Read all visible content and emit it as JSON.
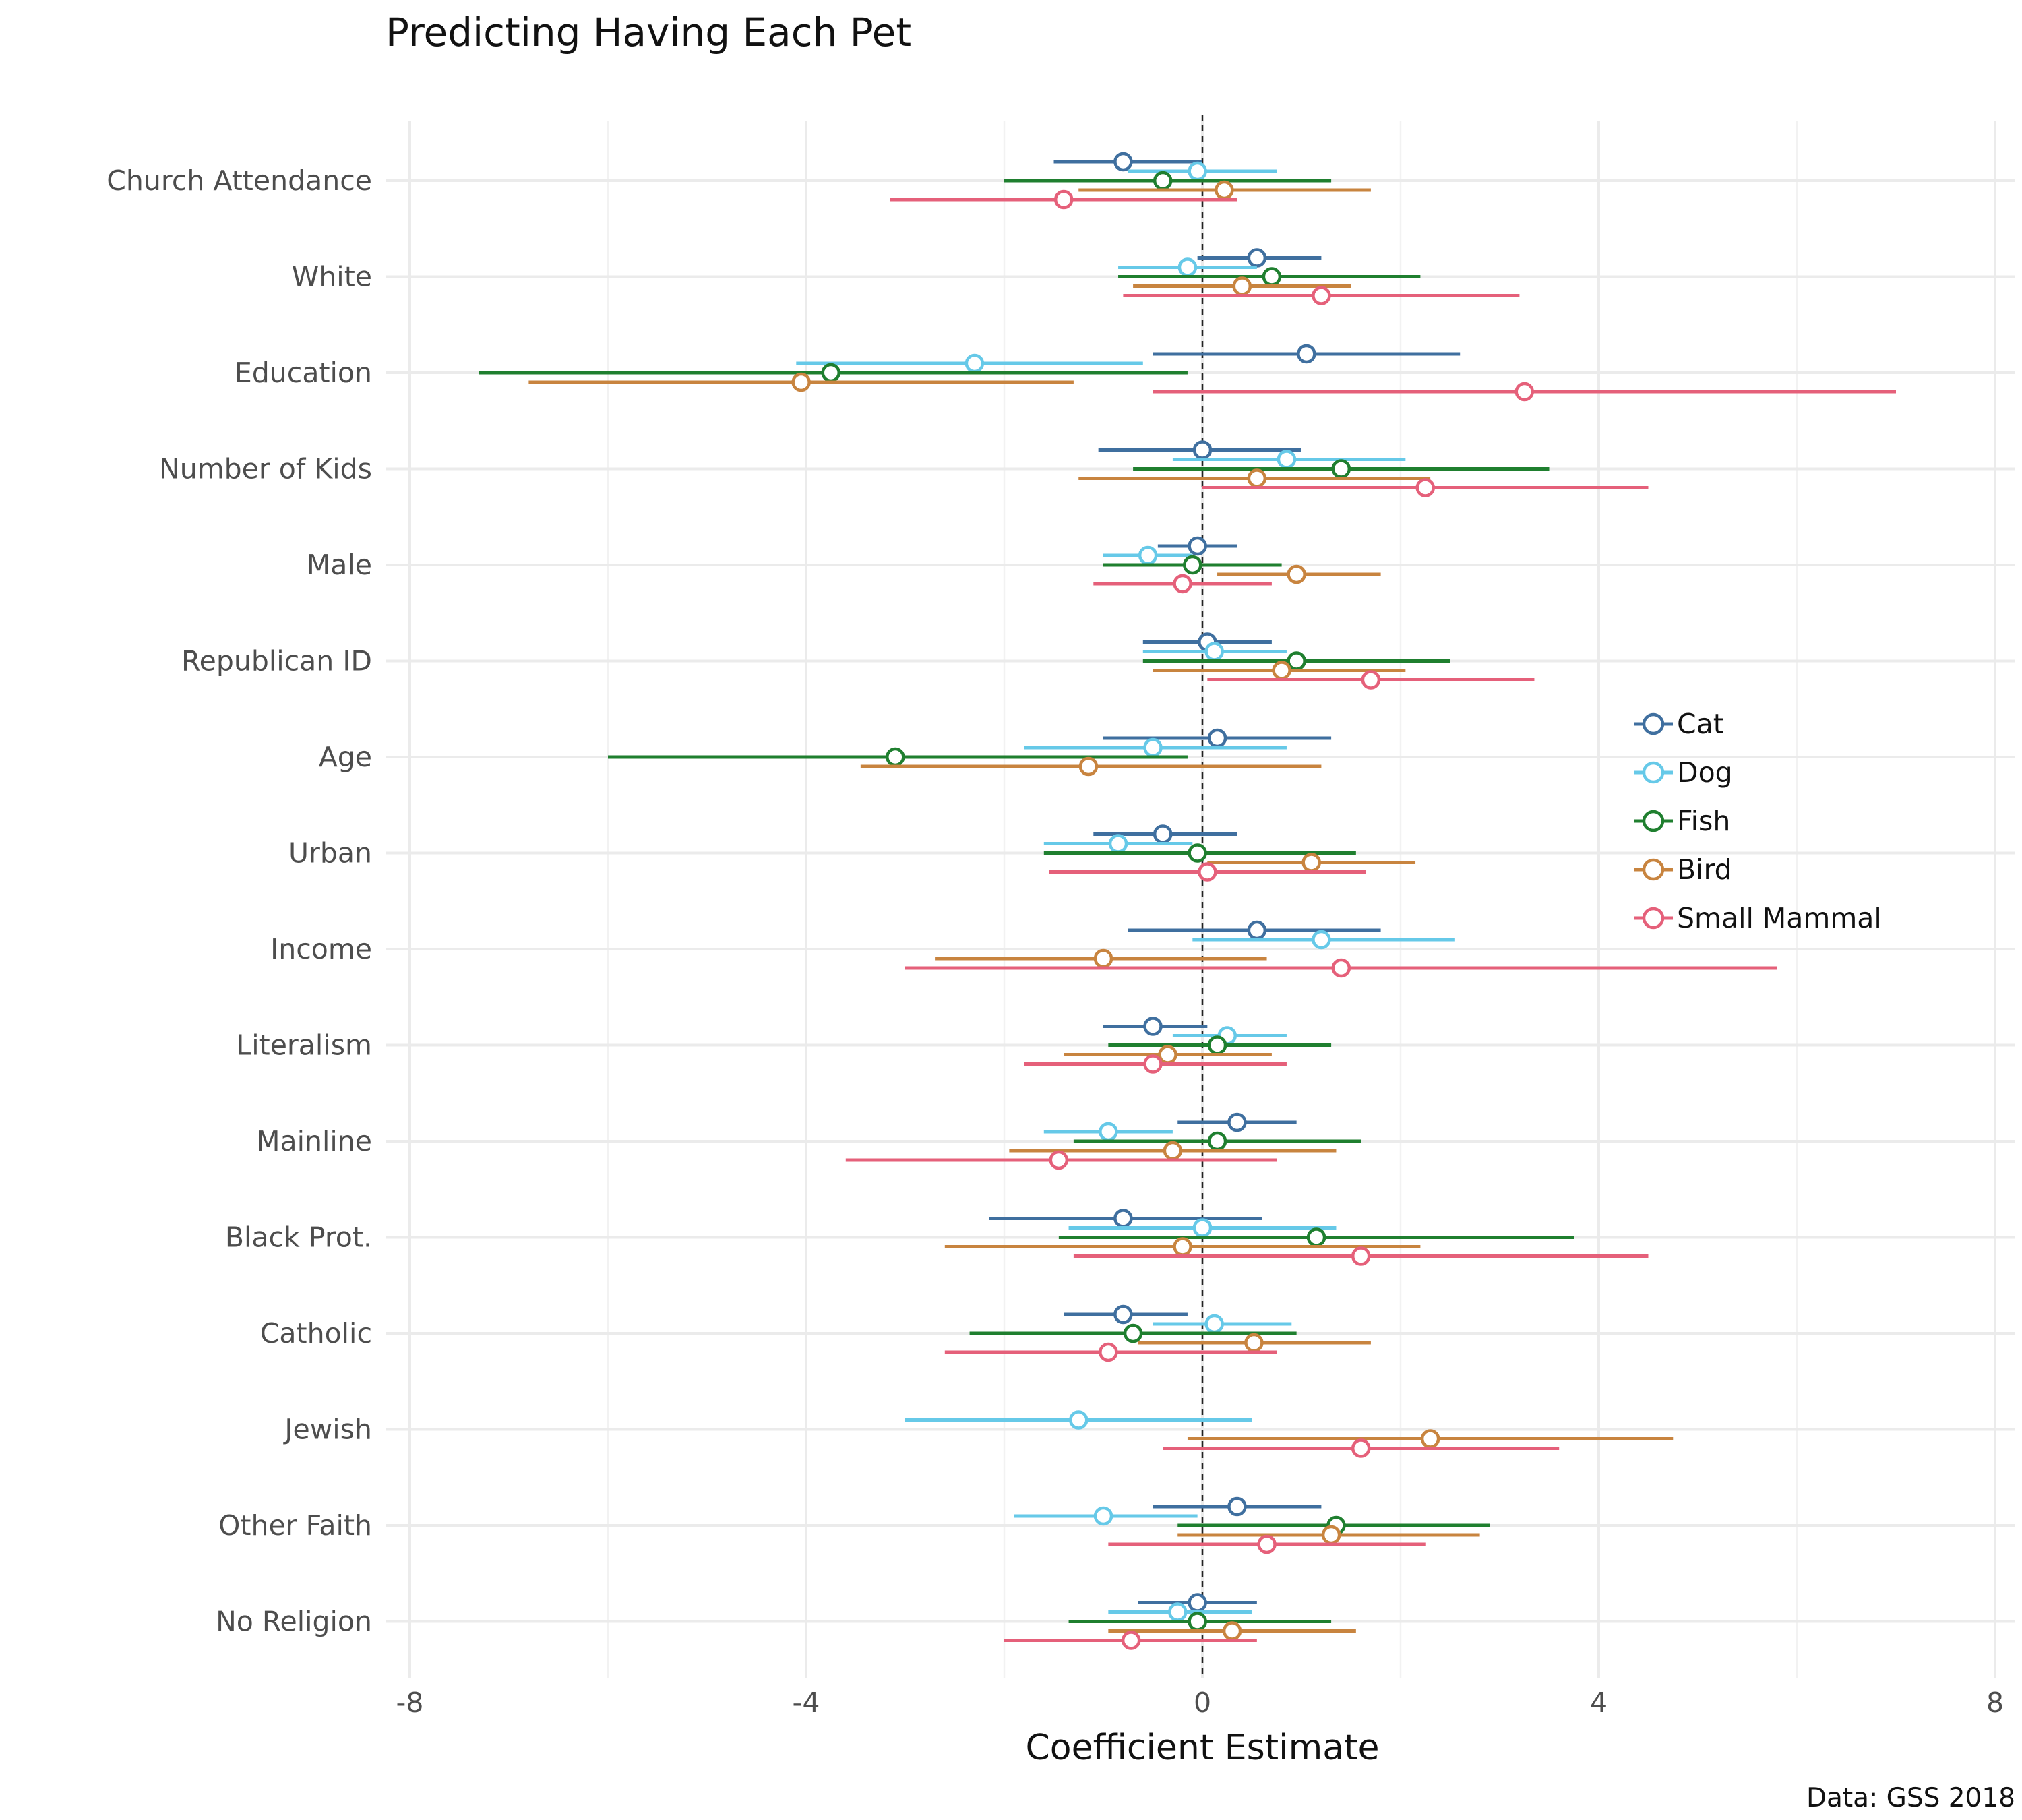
{
  "chart_data": {
    "type": "dot-and-whisker",
    "title": "Predicting Having Each Pet",
    "xlabel": "Coefficient Estimate",
    "caption": "Data: GSS 2018",
    "xlim": [
      -8.2,
      8.2
    ],
    "xticks": [
      -8,
      -4,
      0,
      4,
      8
    ],
    "xtick_labels": [
      "-8",
      "-4",
      "0",
      "4",
      "8"
    ],
    "reference_line": 0,
    "grid": true,
    "legend_position": "right",
    "colors": {
      "Cat": "#3f6f9f",
      "Dog": "#66c9e8",
      "Fish": "#1f7f2f",
      "Bird": "#c8843f",
      "Small Mammal": "#e5607a"
    },
    "categories": [
      "Church Attendance",
      "White",
      "Education",
      "Number of Kids",
      "Male",
      "Republican ID",
      "Age",
      "Urban",
      "Income",
      "Literalism",
      "Mainline",
      "Black Prot.",
      "Catholic",
      "Jewish",
      "Other Faith",
      "No Religion"
    ],
    "series": [
      {
        "name": "Cat",
        "color": "#3f6f9f",
        "estimates": [
          {
            "term": "Church Attendance",
            "est": -0.8,
            "lo": -1.5,
            "hi": 0.0
          },
          {
            "term": "White",
            "est": 0.55,
            "lo": -0.05,
            "hi": 1.2
          },
          {
            "term": "Education",
            "est": 1.05,
            "lo": -0.5,
            "hi": 2.6
          },
          {
            "term": "Number of Kids",
            "est": 0.0,
            "lo": -1.05,
            "hi": 1.0
          },
          {
            "term": "Male",
            "est": -0.05,
            "lo": -0.45,
            "hi": 0.35
          },
          {
            "term": "Republican ID",
            "est": 0.05,
            "lo": -0.6,
            "hi": 0.7
          },
          {
            "term": "Age",
            "est": 0.15,
            "lo": -1.0,
            "hi": 1.3
          },
          {
            "term": "Urban",
            "est": -0.4,
            "lo": -1.1,
            "hi": 0.35
          },
          {
            "term": "Income",
            "est": 0.55,
            "lo": -0.75,
            "hi": 1.8
          },
          {
            "term": "Literalism",
            "est": -0.5,
            "lo": -1.0,
            "hi": 0.05
          },
          {
            "term": "Mainline",
            "est": 0.35,
            "lo": -0.25,
            "hi": 0.95
          },
          {
            "term": "Black Prot.",
            "est": -0.8,
            "lo": -2.15,
            "hi": 0.6
          },
          {
            "term": "Catholic",
            "est": -0.8,
            "lo": -1.4,
            "hi": -0.15
          },
          {
            "term": "Other Faith",
            "est": 0.35,
            "lo": -0.5,
            "hi": 1.2
          },
          {
            "term": "No Religion",
            "est": -0.05,
            "lo": -0.65,
            "hi": 0.55
          }
        ]
      },
      {
        "name": "Dog",
        "color": "#66c9e8",
        "estimates": [
          {
            "term": "Church Attendance",
            "est": -0.05,
            "lo": -0.75,
            "hi": 0.75
          },
          {
            "term": "White",
            "est": -0.15,
            "lo": -0.85,
            "hi": 0.55
          },
          {
            "term": "Education",
            "est": -2.3,
            "lo": -4.1,
            "hi": -0.6
          },
          {
            "term": "Number of Kids",
            "est": 0.85,
            "lo": -0.3,
            "hi": 2.05
          },
          {
            "term": "Male",
            "est": -0.55,
            "lo": -1.0,
            "hi": -0.1
          },
          {
            "term": "Republican ID",
            "est": 0.12,
            "lo": -0.6,
            "hi": 0.85
          },
          {
            "term": "Age",
            "est": -0.5,
            "lo": -1.8,
            "hi": 0.85
          },
          {
            "term": "Urban",
            "est": -0.85,
            "lo": -1.6,
            "hi": -0.1
          },
          {
            "term": "Income",
            "est": 1.2,
            "lo": -0.1,
            "hi": 2.55
          },
          {
            "term": "Literalism",
            "est": 0.25,
            "lo": -0.3,
            "hi": 0.85
          },
          {
            "term": "Mainline",
            "est": -0.95,
            "lo": -1.6,
            "hi": -0.3
          },
          {
            "term": "Black Prot.",
            "est": 0.0,
            "lo": -1.35,
            "hi": 1.35
          },
          {
            "term": "Catholic",
            "est": 0.12,
            "lo": -0.5,
            "hi": 0.9
          },
          {
            "term": "Jewish",
            "est": -1.25,
            "lo": -3.0,
            "hi": 0.5
          },
          {
            "term": "Other Faith",
            "est": -1.0,
            "lo": -1.9,
            "hi": -0.05
          },
          {
            "term": "No Religion",
            "est": -0.25,
            "lo": -0.95,
            "hi": 0.5
          }
        ]
      },
      {
        "name": "Fish",
        "color": "#1f7f2f",
        "estimates": [
          {
            "term": "Church Attendance",
            "est": -0.4,
            "lo": -2.0,
            "hi": 1.3
          },
          {
            "term": "White",
            "est": 0.7,
            "lo": -0.85,
            "hi": 2.2
          },
          {
            "term": "Education",
            "est": -3.75,
            "lo": -7.3,
            "hi": -0.15
          },
          {
            "term": "Number of Kids",
            "est": 1.4,
            "lo": -0.7,
            "hi": 3.5
          },
          {
            "term": "Male",
            "est": -0.1,
            "lo": -1.0,
            "hi": 0.8
          },
          {
            "term": "Republican ID",
            "est": 0.95,
            "lo": -0.6,
            "hi": 2.5
          },
          {
            "term": "Age",
            "est": -3.1,
            "lo": -6.0,
            "hi": -0.15
          },
          {
            "term": "Urban",
            "est": -0.05,
            "lo": -1.6,
            "hi": 1.55
          },
          {
            "term": "Literalism",
            "est": 0.15,
            "lo": -0.95,
            "hi": 1.3
          },
          {
            "term": "Mainline",
            "est": 0.15,
            "lo": -1.3,
            "hi": 1.6
          },
          {
            "term": "Black Prot.",
            "est": 1.15,
            "lo": -1.45,
            "hi": 3.75
          },
          {
            "term": "Catholic",
            "est": -0.7,
            "lo": -2.35,
            "hi": 0.95
          },
          {
            "term": "Other Faith",
            "est": 1.35,
            "lo": -0.25,
            "hi": 2.9
          },
          {
            "term": "No Religion",
            "est": -0.05,
            "lo": -1.35,
            "hi": 1.3
          }
        ]
      },
      {
        "name": "Bird",
        "color": "#c8843f",
        "estimates": [
          {
            "term": "Church Attendance",
            "est": 0.22,
            "lo": -1.25,
            "hi": 1.7
          },
          {
            "term": "White",
            "est": 0.4,
            "lo": -0.7,
            "hi": 1.5
          },
          {
            "term": "Education",
            "est": -4.05,
            "lo": -6.8,
            "hi": -1.3
          },
          {
            "term": "Number of Kids",
            "est": 0.55,
            "lo": -1.25,
            "hi": 2.3
          },
          {
            "term": "Male",
            "est": 0.95,
            "lo": 0.15,
            "hi": 1.8
          },
          {
            "term": "Republican ID",
            "est": 0.8,
            "lo": -0.5,
            "hi": 2.05
          },
          {
            "term": "Age",
            "est": -1.15,
            "lo": -3.45,
            "hi": 1.2
          },
          {
            "term": "Urban",
            "est": 1.1,
            "lo": 0.05,
            "hi": 2.15
          },
          {
            "term": "Income",
            "est": -1.0,
            "lo": -2.7,
            "hi": 0.65
          },
          {
            "term": "Literalism",
            "est": -0.35,
            "lo": -1.4,
            "hi": 0.7
          },
          {
            "term": "Mainline",
            "est": -0.3,
            "lo": -1.95,
            "hi": 1.35
          },
          {
            "term": "Black Prot.",
            "est": -0.2,
            "lo": -2.6,
            "hi": 2.2
          },
          {
            "term": "Catholic",
            "est": 0.52,
            "lo": -0.65,
            "hi": 1.7
          },
          {
            "term": "Jewish",
            "est": 2.3,
            "lo": -0.15,
            "hi": 4.75
          },
          {
            "term": "Other Faith",
            "est": 1.3,
            "lo": -0.25,
            "hi": 2.8
          },
          {
            "term": "No Religion",
            "est": 0.3,
            "lo": -0.95,
            "hi": 1.55
          }
        ]
      },
      {
        "name": "Small Mammal",
        "color": "#e5607a",
        "estimates": [
          {
            "term": "Church Attendance",
            "est": -1.4,
            "lo": -3.15,
            "hi": 0.35
          },
          {
            "term": "White",
            "est": 1.2,
            "lo": -0.8,
            "hi": 3.2
          },
          {
            "term": "Education",
            "est": 3.25,
            "lo": -0.5,
            "hi": 7.0
          },
          {
            "term": "Number of Kids",
            "est": 2.25,
            "lo": 0.0,
            "hi": 4.5
          },
          {
            "term": "Male",
            "est": -0.2,
            "lo": -1.1,
            "hi": 0.7
          },
          {
            "term": "Republican ID",
            "est": 1.7,
            "lo": 0.05,
            "hi": 3.35
          },
          {
            "term": "Urban",
            "est": 0.05,
            "lo": -1.55,
            "hi": 1.65
          },
          {
            "term": "Income",
            "est": 1.4,
            "lo": -3.0,
            "hi": 5.8
          },
          {
            "term": "Literalism",
            "est": -0.5,
            "lo": -1.8,
            "hi": 0.85
          },
          {
            "term": "Mainline",
            "est": -1.45,
            "lo": -3.6,
            "hi": 0.75
          },
          {
            "term": "Black Prot.",
            "est": 1.6,
            "lo": -1.3,
            "hi": 4.5
          },
          {
            "term": "Catholic",
            "est": -0.95,
            "lo": -2.6,
            "hi": 0.75
          },
          {
            "term": "Jewish",
            "est": 1.6,
            "lo": -0.4,
            "hi": 3.6
          },
          {
            "term": "Other Faith",
            "est": 0.65,
            "lo": -0.95,
            "hi": 2.25
          },
          {
            "term": "No Religion",
            "est": -0.72,
            "lo": -2.0,
            "hi": 0.55
          }
        ]
      }
    ]
  }
}
